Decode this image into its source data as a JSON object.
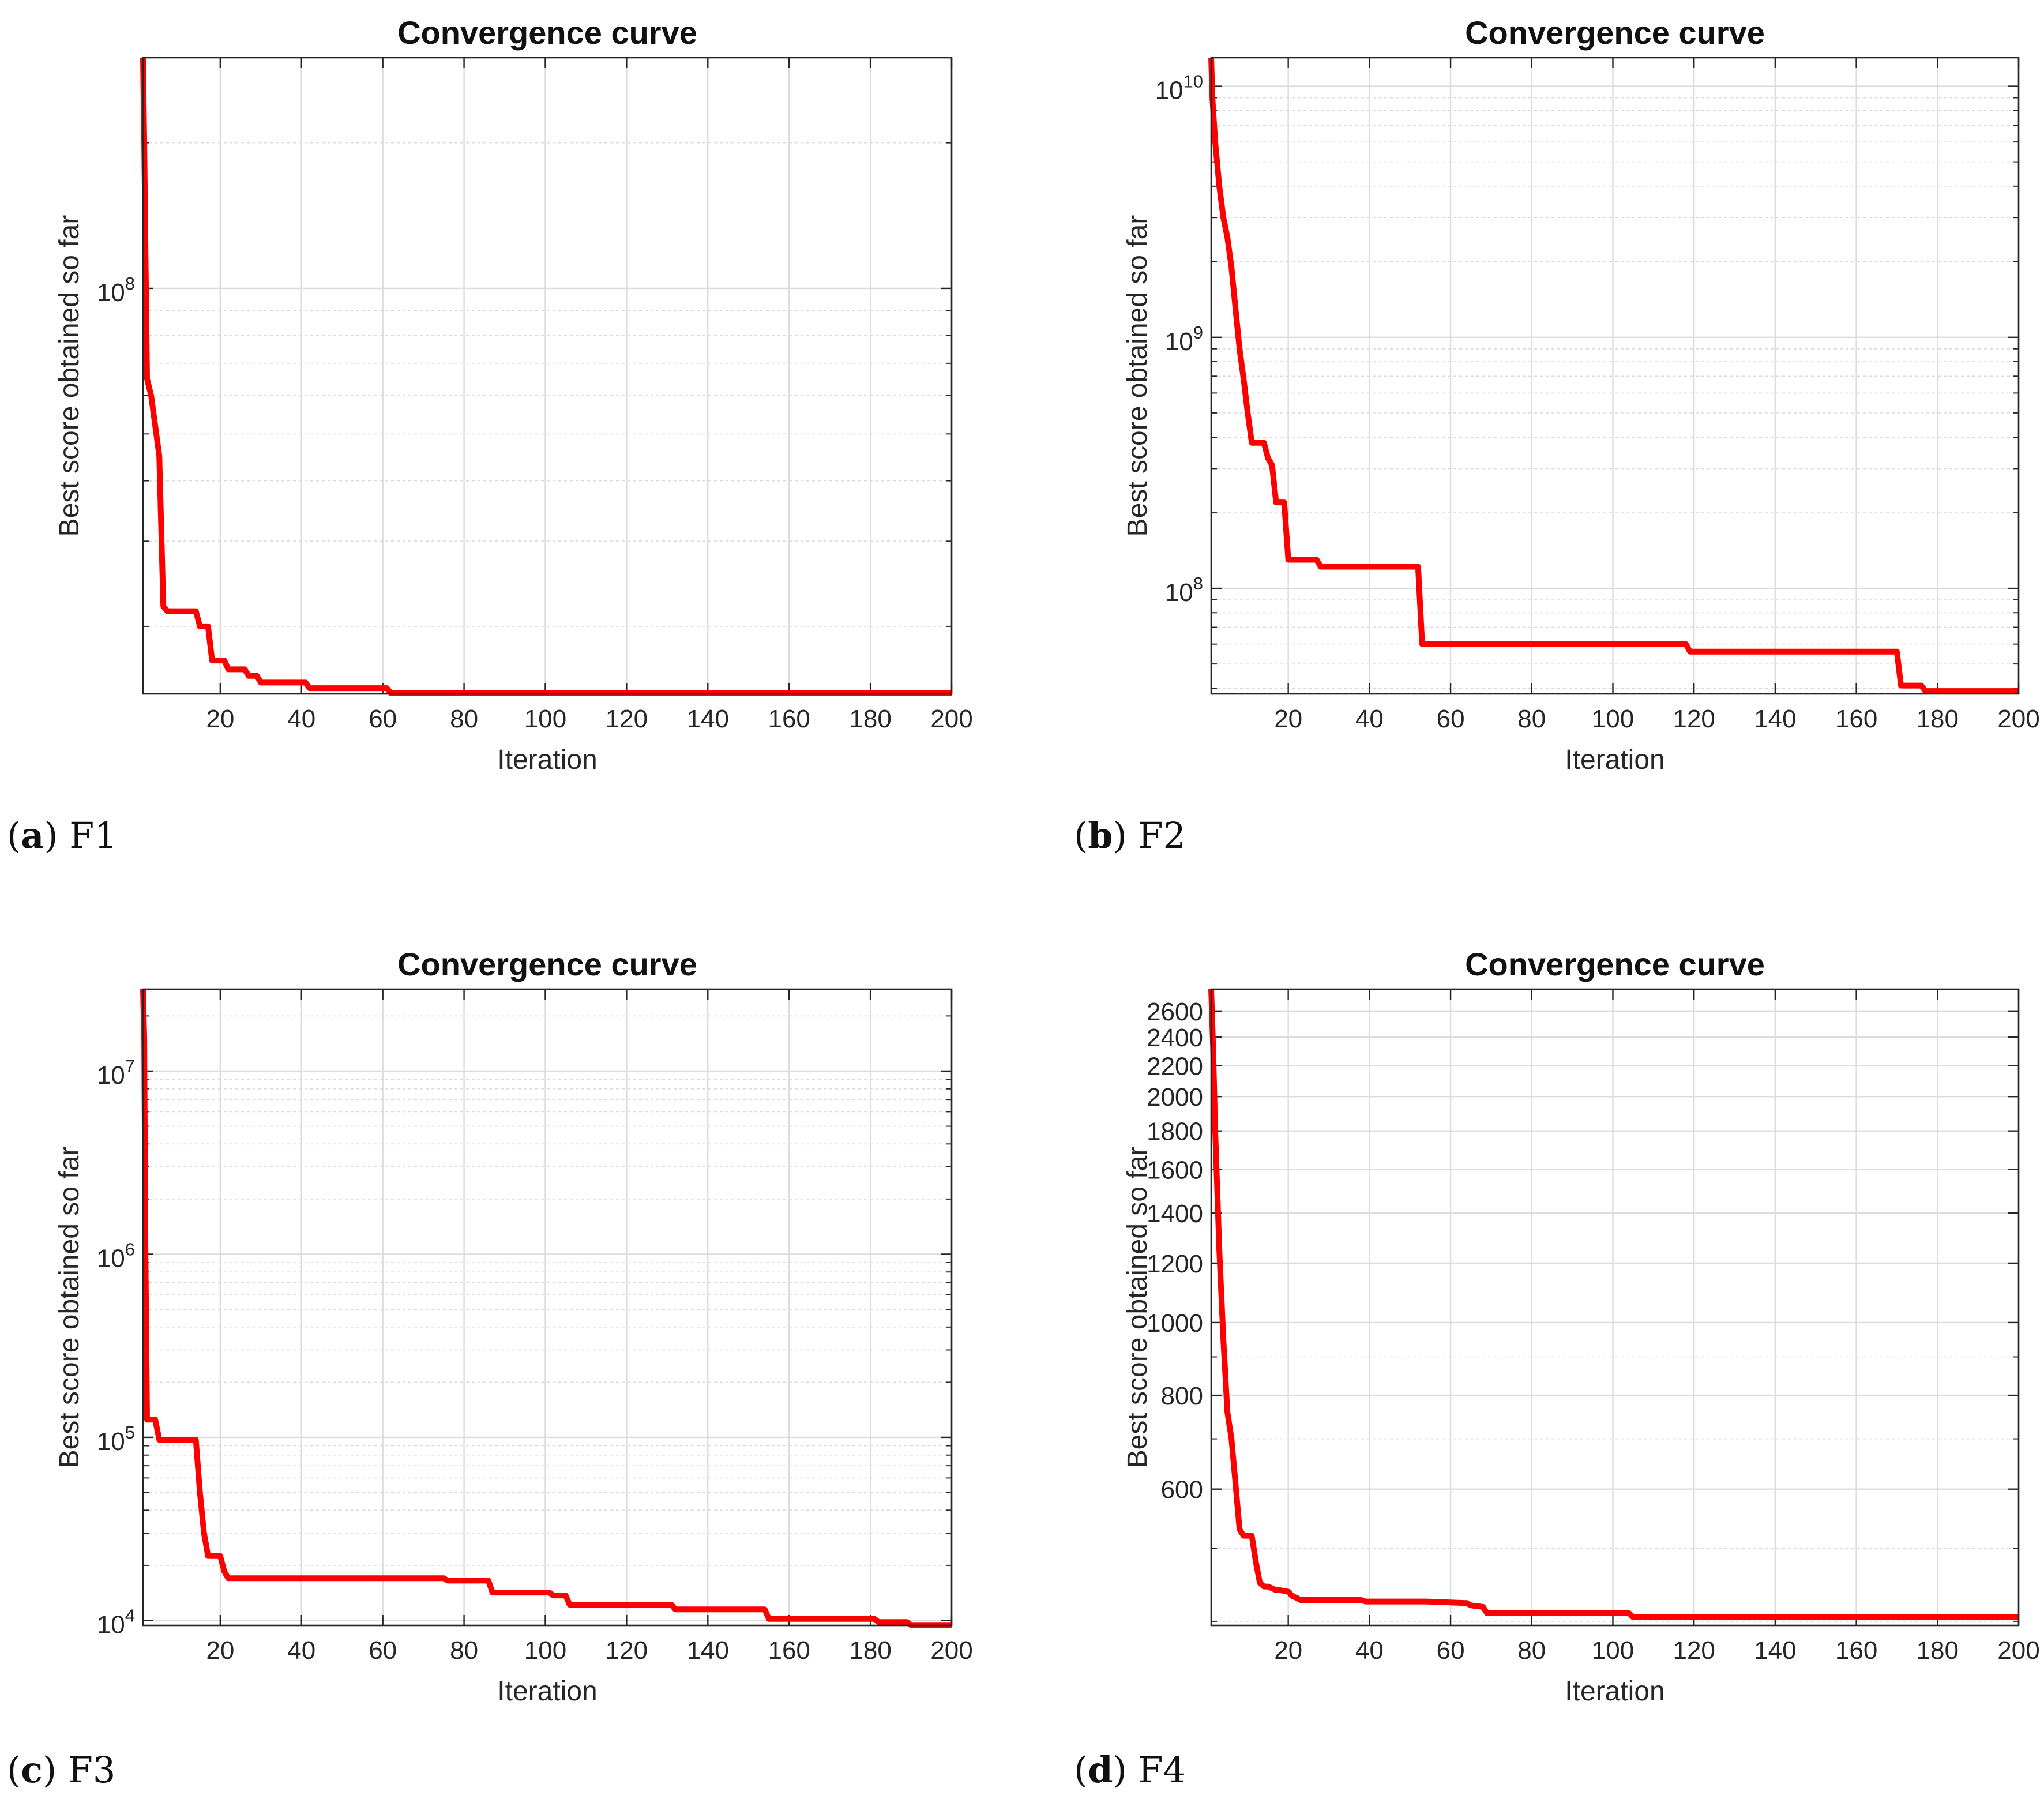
{
  "chart_data": [
    {
      "type": "line",
      "panel_label": "a",
      "caption": "F1",
      "title": "Convergence curve",
      "xlabel": "Iteration",
      "ylabel": "Best score obtained so far",
      "yscale": "log",
      "xlim": [
        1,
        200
      ],
      "ylim": [
        14500000,
        300000000
      ],
      "xticks": [
        20,
        40,
        60,
        80,
        100,
        120,
        140,
        160,
        180,
        200
      ],
      "yticks": [
        {
          "value": 100000000,
          "label": "10",
          "exp": "8"
        }
      ],
      "grid": true,
      "line_color": "#ff0000",
      "series": [
        {
          "name": "Best score",
          "x": [
            1,
            1.3,
            1.6,
            2,
            3,
            4,
            5,
            6,
            7,
            14,
            15,
            17,
            18,
            21,
            22,
            26,
            27,
            29,
            30,
            41,
            42,
            61,
            62,
            200
          ],
          "y": [
            300000000,
            200000000,
            120000000,
            65000000,
            60000000,
            52000000,
            45000000,
            22000000,
            21500000,
            21500000,
            20000000,
            20000000,
            17000000,
            17000000,
            16300000,
            16300000,
            15800000,
            15800000,
            15300000,
            15300000,
            14900000,
            14900000,
            14550000,
            14550000
          ]
        }
      ]
    },
    {
      "type": "line",
      "panel_label": "b",
      "caption": "F2",
      "title": "Convergence curve",
      "xlabel": "Iteration",
      "ylabel": "Best score obtained so far",
      "yscale": "log",
      "xlim": [
        1,
        200
      ],
      "ylim": [
        38000000,
        13000000000
      ],
      "xticks": [
        20,
        40,
        60,
        80,
        100,
        120,
        140,
        160,
        180,
        200
      ],
      "yticks": [
        {
          "value": 100000000,
          "label": "10",
          "exp": "8"
        },
        {
          "value": 1000000000,
          "label": "10",
          "exp": "9"
        },
        {
          "value": 10000000000,
          "label": "10",
          "exp": "10"
        }
      ],
      "grid": true,
      "line_color": "#ff0000",
      "series": [
        {
          "name": "Best score",
          "x": [
            1,
            1.3,
            2,
            3,
            4,
            5,
            6,
            7,
            8,
            9,
            10,
            11,
            12,
            14,
            15,
            16,
            17,
            19,
            20,
            27,
            28,
            52,
            53,
            118,
            119,
            170,
            171,
            176,
            177,
            200
          ],
          "y": [
            13000000000,
            9000000000,
            6000000000,
            4000000000,
            3000000000,
            2500000000,
            1900000000,
            1300000000,
            900000000,
            680000000,
            500000000,
            380000000,
            380000000,
            380000000,
            330000000,
            310000000,
            220000000,
            220000000,
            130000000,
            130000000,
            122000000,
            122000000,
            60000000,
            60000000,
            56000000,
            56000000,
            41000000,
            41000000,
            39000000,
            39000000
          ]
        }
      ]
    },
    {
      "type": "line",
      "panel_label": "c",
      "caption": "F3",
      "title": "Convergence curve",
      "xlabel": "Iteration",
      "ylabel": "Best score obtained so far",
      "yscale": "log",
      "xlim": [
        1,
        200
      ],
      "ylim": [
        9400,
        28000000
      ],
      "xticks": [
        20,
        40,
        60,
        80,
        100,
        120,
        140,
        160,
        180,
        200
      ],
      "yticks": [
        {
          "value": 10000,
          "label": "10",
          "exp": "4"
        },
        {
          "value": 100000,
          "label": "10",
          "exp": "5"
        },
        {
          "value": 1000000,
          "label": "10",
          "exp": "6"
        },
        {
          "value": 10000000,
          "label": "10",
          "exp": "7"
        }
      ],
      "grid": true,
      "line_color": "#ff0000",
      "series": [
        {
          "name": "Best score",
          "x": [
            1,
            1.3,
            1.6,
            2,
            4,
            5,
            14,
            15,
            16,
            17,
            20,
            21,
            22,
            75,
            76,
            86,
            87,
            101,
            102,
            105,
            106,
            131,
            132,
            154,
            155,
            181,
            182,
            189,
            190,
            200
          ],
          "y": [
            28000000,
            15000000,
            1000000,
            125000,
            125000,
            97000,
            97000,
            50000,
            30000,
            22500,
            22500,
            18500,
            17000,
            17000,
            16500,
            16500,
            14200,
            14200,
            13700,
            13700,
            12200,
            12200,
            11500,
            11500,
            10200,
            10200,
            9800,
            9800,
            9450,
            9450
          ]
        }
      ]
    },
    {
      "type": "line",
      "panel_label": "d",
      "caption": "F4",
      "title": "Convergence curve",
      "xlabel": "Iteration",
      "ylabel": "Best score obtained so far",
      "yscale": "log",
      "xlim": [
        1,
        200
      ],
      "ylim": [
        395,
        2780
      ],
      "xticks": [
        20,
        40,
        60,
        80,
        100,
        120,
        140,
        160,
        180,
        200
      ],
      "yticks": [
        {
          "value": 600,
          "label": "600"
        },
        {
          "value": 800,
          "label": "800"
        },
        {
          "value": 1000,
          "label": "1000"
        },
        {
          "value": 1200,
          "label": "1200"
        },
        {
          "value": 1400,
          "label": "1400"
        },
        {
          "value": 1600,
          "label": "1600"
        },
        {
          "value": 1800,
          "label": "1800"
        },
        {
          "value": 2000,
          "label": "2000"
        },
        {
          "value": 2200,
          "label": "2200"
        },
        {
          "value": 2400,
          "label": "2400"
        },
        {
          "value": 2600,
          "label": "2600"
        }
      ],
      "grid": true,
      "line_color": "#ff0000",
      "series": [
        {
          "name": "Best score",
          "x": [
            1,
            1.5,
            2,
            3,
            4,
            5,
            6,
            7,
            8,
            9,
            11,
            12,
            13,
            14,
            15,
            17,
            18,
            20,
            21,
            22,
            23,
            24,
            38,
            39,
            53,
            54,
            64,
            65,
            68,
            69,
            104,
            105,
            200
          ],
          "y": [
            2780,
            2300,
            1800,
            1250,
            950,
            760,
            700,
            610,
            530,
            520,
            520,
            480,
            450,
            445,
            445,
            440,
            440,
            438,
            432,
            430,
            427,
            427,
            427,
            425,
            425,
            425,
            423,
            420,
            418,
            410,
            410,
            405,
            405
          ]
        }
      ]
    }
  ]
}
